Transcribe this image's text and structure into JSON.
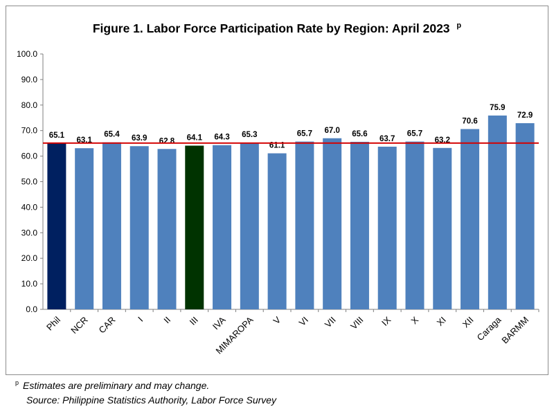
{
  "chart_data": {
    "type": "bar",
    "title": "Figure 1. Labor Force Participation Rate by Region: April 2023",
    "title_marker": "p",
    "categories": [
      "Phil",
      "NCR",
      "CAR",
      "I",
      "II",
      "III",
      "IVA",
      "MIMAROPA",
      "V",
      "VI",
      "VII",
      "VIII",
      "IX",
      "X",
      "XI",
      "XII",
      "Caraga",
      "BARMM"
    ],
    "series": [
      {
        "values": [
          65.1,
          63.1,
          65.4,
          63.9,
          62.8,
          64.1,
          64.3,
          65.3,
          61.1,
          65.7,
          67.0,
          65.6,
          63.7,
          65.7,
          63.2,
          70.6,
          75.9,
          72.9
        ]
      }
    ],
    "data_labels": [
      "65.1",
      "63.1",
      "65.4",
      "63.9",
      "62.8",
      "64.1",
      "64.3",
      "65.3",
      "61.1",
      "65.7",
      "67.0",
      "65.6",
      "63.7",
      "65.7",
      "63.2",
      "70.6",
      "75.9",
      "72.9"
    ],
    "reference_line": 65.1,
    "ylim": [
      0,
      100
    ],
    "yticks": [
      "0.0",
      "10.0",
      "20.0",
      "30.0",
      "40.0",
      "50.0",
      "60.0",
      "70.0",
      "80.0",
      "90.0",
      "100.0"
    ],
    "xlabel": "",
    "ylabel": "",
    "grid": false,
    "legend": "none",
    "colors": {
      "default_bar": "#4f81bd",
      "phil_bar": "#002060",
      "region_iii_bar": "#003300",
      "reference_line": "#d40000"
    }
  },
  "footnote": {
    "marker": "p",
    "note": "Estimates are preliminary and may change.",
    "source": "Source: Philippine Statistics Authority, Labor Force Survey"
  }
}
